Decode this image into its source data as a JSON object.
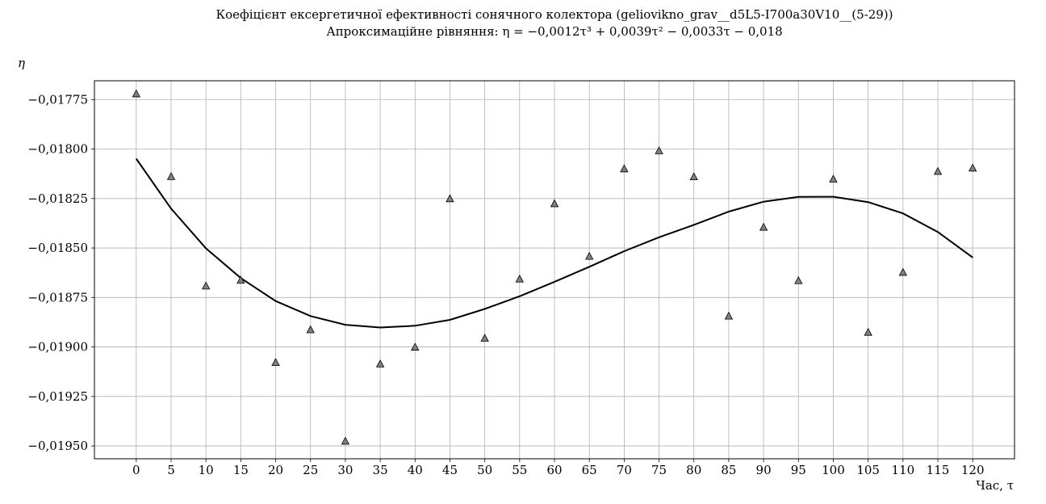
{
  "chart_data": {
    "type": "scatter",
    "title": "Коефіцієнт ексергетичної ефективності сонячного колектора (geliovikno_grav__d5L5-I700a30V10__(5-29))",
    "subtitle": "Апроксимаційне рівняння: η = −0,0012τ³ + 0,0039τ² − 0,0033τ − 0,018",
    "xlabel": "Час, τ",
    "ylabel": "η",
    "xlim": [
      -6,
      126
    ],
    "ylim": [
      -0.019565,
      -0.017655
    ],
    "xticks": [
      0,
      5,
      10,
      15,
      20,
      25,
      30,
      35,
      40,
      45,
      50,
      55,
      60,
      65,
      70,
      75,
      80,
      85,
      90,
      95,
      100,
      105,
      110,
      115,
      120
    ],
    "yticks": [
      -0.01775,
      -0.018,
      -0.01825,
      -0.0185,
      -0.01875,
      -0.019,
      -0.01925,
      -0.0195
    ],
    "ytick_labels": [
      "−0,01775",
      "−0,01800",
      "−0,01825",
      "−0,01850",
      "−0,01875",
      "−0,01900",
      "−0,01925",
      "−0,01950"
    ],
    "grid": true,
    "series": [
      {
        "marker": "triangle",
        "x": [
          0,
          5,
          10,
          15,
          20,
          25,
          30,
          35,
          40,
          45,
          50,
          55,
          60,
          65,
          70,
          75,
          80,
          85,
          90,
          95,
          100,
          105,
          110,
          115,
          120
        ],
        "y": [
          -0.01772,
          -0.018138,
          -0.018691,
          -0.018662,
          -0.019077,
          -0.018912,
          -0.019475,
          -0.019085,
          -0.019,
          -0.01825,
          -0.018955,
          -0.018656,
          -0.018275,
          -0.018541,
          -0.018099,
          -0.018008,
          -0.018139,
          -0.018843,
          -0.018394,
          -0.018664,
          -0.018151,
          -0.018925,
          -0.018622,
          -0.018112,
          -0.018095
        ]
      },
      {
        "line": true,
        "x": [
          0,
          5,
          10,
          15,
          20,
          25,
          30,
          35,
          40,
          45,
          50,
          55,
          60,
          65,
          70,
          75,
          80,
          85,
          90,
          95,
          100,
          105,
          110,
          115,
          120
        ],
        "y": [
          -0.018049,
          -0.018301,
          -0.018502,
          -0.018652,
          -0.018768,
          -0.018844,
          -0.018888,
          -0.018902,
          -0.018893,
          -0.018863,
          -0.018808,
          -0.018744,
          -0.018671,
          -0.018595,
          -0.018516,
          -0.018446,
          -0.018383,
          -0.018316,
          -0.018266,
          -0.018242,
          -0.018241,
          -0.018268,
          -0.018325,
          -0.018419,
          -0.018548
        ]
      }
    ],
    "colors": {
      "marker_fill": "#808080",
      "line": "#000000",
      "grid": "#b0b0b0"
    }
  }
}
